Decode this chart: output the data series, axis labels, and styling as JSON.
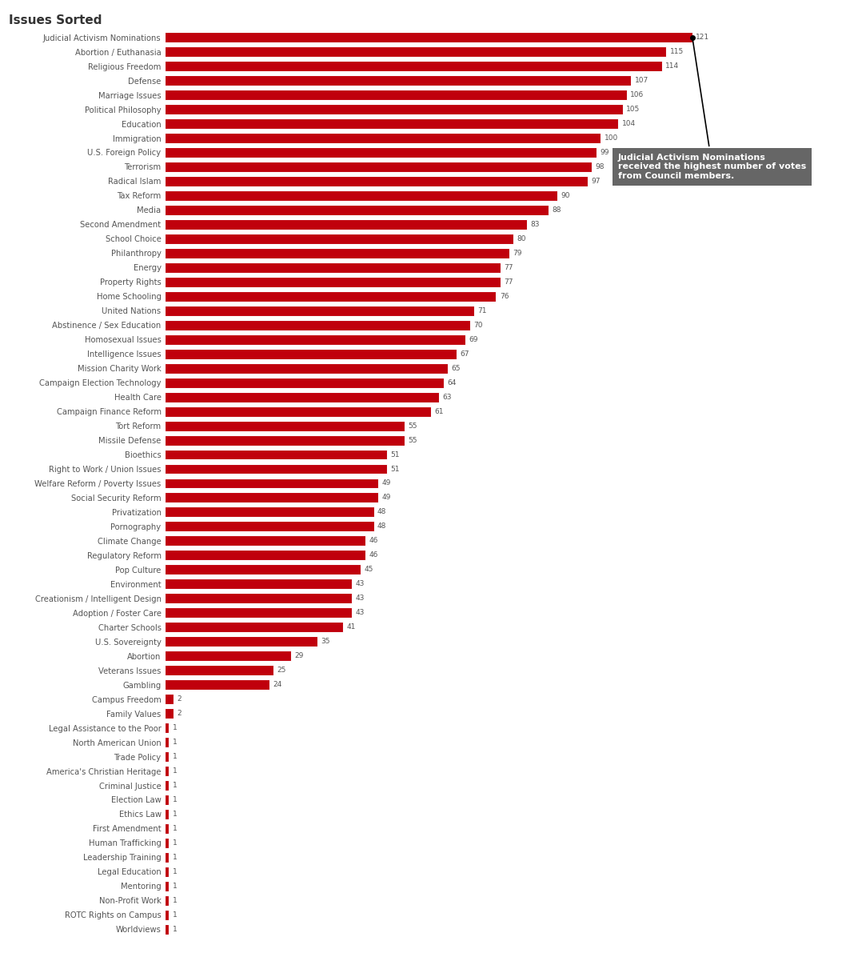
{
  "title": "Issues Sorted",
  "bar_color": "#c0000c",
  "label_color": "#555555",
  "value_color": "#555555",
  "background_color": "#ffffff",
  "categories": [
    "Judicial Activism Nominations",
    "Abortion / Euthanasia",
    "Religious Freedom",
    "Defense",
    "Marriage Issues",
    "Political Philosophy",
    "Education",
    "Immigration",
    "U.S. Foreign Policy",
    "Terrorism",
    "Radical Islam",
    "Tax Reform",
    "Media",
    "Second Amendment",
    "School Choice",
    "Philanthropy",
    "Energy",
    "Property Rights",
    "Home Schooling",
    "United Nations",
    "Abstinence / Sex Education",
    "Homosexual Issues",
    "Intelligence Issues",
    "Mission Charity Work",
    "Campaign Election Technology",
    "Health Care",
    "Campaign Finance Reform",
    "Tort Reform",
    "Missile Defense",
    "Bioethics",
    "Right to Work / Union Issues",
    "Welfare Reform / Poverty Issues",
    "Social Security Reform",
    "Privatization",
    "Pornography",
    "Climate Change",
    "Regulatory Reform",
    "Pop Culture",
    "Environment",
    "Creationism / Intelligent Design",
    "Adoption / Foster Care",
    "Charter Schools",
    "U.S. Sovereignty",
    "Abortion",
    "Veterans Issues",
    "Gambling",
    "Campus Freedom",
    "Family Values",
    "Legal Assistance to the Poor",
    "North American Union",
    "Trade Policy",
    "America's Christian Heritage",
    "Criminal Justice",
    "Election Law",
    "Ethics Law",
    "First Amendment",
    "Human Trafficking",
    "Leadership Training",
    "Legal Education",
    "Mentoring",
    "Non-Profit Work",
    "ROTC Rights on Campus",
    "Worldviews"
  ],
  "values": [
    121,
    115,
    114,
    107,
    106,
    105,
    104,
    100,
    99,
    98,
    97,
    90,
    88,
    83,
    80,
    79,
    77,
    77,
    76,
    71,
    70,
    69,
    67,
    65,
    64,
    63,
    61,
    55,
    55,
    51,
    51,
    49,
    49,
    48,
    48,
    46,
    46,
    45,
    43,
    43,
    43,
    41,
    35,
    29,
    25,
    24,
    2,
    2,
    1,
    1,
    1,
    1,
    1,
    1,
    1,
    1,
    1,
    1,
    1,
    1,
    1,
    1,
    1
  ],
  "annotation_text": "Judicial Activism Nominations\nreceived the highest number of votes\nfrom Council members.",
  "annotation_box_color": "#555555",
  "annotation_text_color": "#ffffff",
  "dot_color": "#000000",
  "xlim_max": 135,
  "fig_width": 10.83,
  "fig_height": 11.96
}
